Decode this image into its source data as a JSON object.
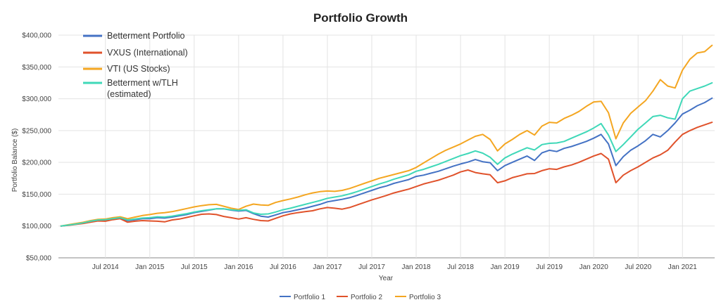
{
  "chart_data": {
    "type": "line",
    "title": "Portfolio Growth",
    "xlabel": "Year",
    "ylabel": "Portfolio Balance ($)",
    "x_tick_labels": [
      "Jul 2014",
      "Jan 2015",
      "Jul 2015",
      "Jan 2016",
      "Jul 2016",
      "Jan 2017",
      "Jul 2017",
      "Jan 2018",
      "Jul 2018",
      "Jan 2019",
      "Jul 2019",
      "Jan 2020",
      "Jul 2020",
      "Jan 2021"
    ],
    "x_tick_dates": [
      "2014-07",
      "2015-01",
      "2015-07",
      "2016-01",
      "2016-07",
      "2017-01",
      "2017-07",
      "2018-01",
      "2018-07",
      "2019-01",
      "2019-07",
      "2020-01",
      "2020-07",
      "2021-01"
    ],
    "y_ticks": [
      50000,
      100000,
      150000,
      200000,
      250000,
      300000,
      350000,
      400000
    ],
    "y_tick_labels": [
      "$50,000",
      "$100,000",
      "$150,000",
      "$200,000",
      "$250,000",
      "$300,000",
      "$350,000",
      "$400,000"
    ],
    "ylim": [
      50000,
      400000
    ],
    "xlim": [
      "2014-01",
      "2021-05"
    ],
    "grid": true,
    "legend_overlay_position": "top-left",
    "legend_overlay": [
      {
        "label": "Betterment Portfolio",
        "color": "#4472C4"
      },
      {
        "label": "VXUS (International)",
        "color": "#E0522B"
      },
      {
        "label": "VTI (US Stocks)",
        "color": "#F4A621"
      },
      {
        "label": "Betterment w/TLH",
        "label_line2": "(estimated)",
        "color": "#3FD8B8"
      }
    ],
    "legend_bottom_position": "bottom-center",
    "legend_bottom": [
      {
        "label": "Portfolio 1",
        "color": "#4472C4"
      },
      {
        "label": "Portfolio 2",
        "color": "#E0522B"
      },
      {
        "label": "Portfolio 3",
        "color": "#F4A621"
      }
    ],
    "x": [
      "2014-01",
      "2014-02",
      "2014-03",
      "2014-04",
      "2014-05",
      "2014-06",
      "2014-07",
      "2014-08",
      "2014-09",
      "2014-10",
      "2014-11",
      "2014-12",
      "2015-01",
      "2015-02",
      "2015-03",
      "2015-04",
      "2015-05",
      "2015-06",
      "2015-07",
      "2015-08",
      "2015-09",
      "2015-10",
      "2015-11",
      "2015-12",
      "2016-01",
      "2016-02",
      "2016-03",
      "2016-04",
      "2016-05",
      "2016-06",
      "2016-07",
      "2016-08",
      "2016-09",
      "2016-10",
      "2016-11",
      "2016-12",
      "2017-01",
      "2017-02",
      "2017-03",
      "2017-04",
      "2017-05",
      "2017-06",
      "2017-07",
      "2017-08",
      "2017-09",
      "2017-10",
      "2017-11",
      "2017-12",
      "2018-01",
      "2018-02",
      "2018-03",
      "2018-04",
      "2018-05",
      "2018-06",
      "2018-07",
      "2018-08",
      "2018-09",
      "2018-10",
      "2018-11",
      "2018-12",
      "2019-01",
      "2019-02",
      "2019-03",
      "2019-04",
      "2019-05",
      "2019-06",
      "2019-07",
      "2019-08",
      "2019-09",
      "2019-10",
      "2019-11",
      "2019-12",
      "2020-01",
      "2020-02",
      "2020-03",
      "2020-04",
      "2020-05",
      "2020-06",
      "2020-07",
      "2020-08",
      "2020-09",
      "2020-10",
      "2020-11",
      "2020-12",
      "2021-01",
      "2021-02",
      "2021-03",
      "2021-04",
      "2021-05"
    ],
    "series": [
      {
        "name": "Portfolio 1",
        "color": "#4472C4",
        "values": [
          100000,
          101500,
          103000,
          104500,
          107000,
          109000,
          109500,
          111000,
          112000,
          108500,
          110000,
          111500,
          111500,
          113000,
          112500,
          114000,
          116000,
          118000,
          121000,
          123000,
          125000,
          127000,
          127000,
          125000,
          123500,
          124500,
          119500,
          115500,
          114000,
          117500,
          121000,
          123000,
          125500,
          128000,
          131000,
          134000,
          138000,
          140000,
          142000,
          144500,
          148000,
          152000,
          156000,
          160000,
          163000,
          167000,
          170000,
          173000,
          178000,
          180000,
          183000,
          186000,
          190000,
          194000,
          197500,
          200500,
          204500,
          201000,
          199500,
          187000,
          195000,
          200000,
          205000,
          210000,
          203000,
          215000,
          219000,
          217000,
          222000,
          225000,
          229000,
          233000,
          238000,
          244000,
          229000,
          195000,
          209000,
          219000,
          226000,
          234000,
          244000,
          240000,
          250000,
          262000,
          276000,
          282000,
          289000,
          294000,
          301000
        ]
      },
      {
        "name": "Portfolio 2",
        "color": "#E0522B",
        "values": [
          100000,
          101000,
          102500,
          104000,
          106000,
          108000,
          107500,
          110000,
          111500,
          106000,
          107500,
          108500,
          108000,
          107500,
          106500,
          109500,
          111000,
          113500,
          116000,
          118500,
          119000,
          118000,
          115000,
          113000,
          111000,
          113000,
          110500,
          108500,
          108000,
          112000,
          116000,
          119000,
          121000,
          122500,
          124000,
          127000,
          129000,
          128000,
          126500,
          129000,
          133000,
          137000,
          141000,
          144500,
          148000,
          152000,
          155000,
          158000,
          162000,
          166000,
          169000,
          172000,
          176000,
          180000,
          185000,
          188000,
          184000,
          182000,
          180500,
          168000,
          171000,
          176000,
          179000,
          182000,
          182500,
          187000,
          190000,
          189000,
          193000,
          196000,
          200000,
          205000,
          210000,
          214000,
          205000,
          168000,
          180000,
          187000,
          193000,
          200000,
          207000,
          212000,
          219000,
          232000,
          244000,
          250000,
          255000,
          259000,
          263000
        ]
      },
      {
        "name": "Portfolio 3",
        "color": "#F4A621",
        "values": [
          100000,
          102000,
          104000,
          106000,
          108500,
          110500,
          111000,
          113000,
          114500,
          111500,
          114000,
          116500,
          118000,
          120000,
          121000,
          122500,
          125000,
          127500,
          130000,
          132000,
          133500,
          134000,
          131000,
          128000,
          126000,
          131000,
          134500,
          133000,
          132500,
          137000,
          140000,
          142500,
          145500,
          149000,
          152000,
          154000,
          155000,
          154500,
          156000,
          159000,
          163000,
          167000,
          171000,
          175000,
          178000,
          181000,
          184000,
          187000,
          192000,
          199000,
          206000,
          213000,
          219000,
          224000,
          229000,
          235000,
          241000,
          244000,
          236000,
          218000,
          229000,
          236000,
          244000,
          250000,
          243000,
          257000,
          263000,
          262000,
          269000,
          274000,
          280000,
          288000,
          295000,
          296000,
          278000,
          237000,
          262000,
          277000,
          287000,
          297000,
          312000,
          330000,
          320000,
          317000,
          345000,
          362000,
          372000,
          374000,
          384000
        ]
      },
      {
        "name": "Betterment w/TLH (estimated)",
        "color": "#3FD8B8",
        "values": [
          100000,
          101500,
          103000,
          105000,
          107500,
          109500,
          110000,
          111500,
          113000,
          109500,
          111000,
          112500,
          113000,
          114500,
          114000,
          115500,
          117500,
          119500,
          122000,
          124000,
          125500,
          127000,
          127000,
          125500,
          124500,
          125500,
          120500,
          118500,
          119000,
          122000,
          125500,
          128000,
          131000,
          134000,
          137000,
          140000,
          143500,
          145500,
          147500,
          150500,
          154000,
          158000,
          162000,
          166000,
          169500,
          173500,
          177000,
          180500,
          186000,
          189000,
          193000,
          197000,
          201500,
          206000,
          210500,
          214000,
          218000,
          214500,
          208000,
          197000,
          207000,
          213000,
          218000,
          223000,
          219500,
          228000,
          230000,
          230500,
          233000,
          238000,
          243000,
          248000,
          254000,
          261000,
          243000,
          217000,
          228000,
          240000,
          252000,
          262000,
          272000,
          274000,
          270000,
          268000,
          300000,
          312000,
          316000,
          320000,
          325000
        ]
      }
    ]
  }
}
